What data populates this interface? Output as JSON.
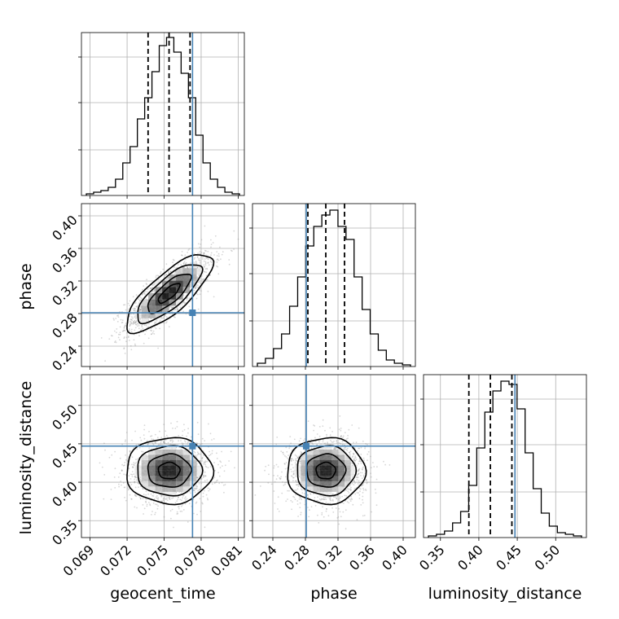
{
  "chart_data": {
    "type": "corner",
    "colors": {
      "truth": "#4682b4",
      "hist": "#000000",
      "grid": "#b0b0b0",
      "scatter": "#8c8c8c"
    },
    "parameters": [
      {
        "name": "geocent_time",
        "label": "geocent_time",
        "range": [
          0.0683,
          0.0815
        ],
        "ticks": [
          0.069,
          0.072,
          0.075,
          0.078,
          0.081
        ],
        "tick_labels": [
          "0.069",
          "0.072",
          "0.075",
          "0.078",
          "0.081"
        ],
        "truth": 0.0773,
        "quantiles": [
          0.0737,
          0.0754,
          0.0771
        ],
        "hist_peak": 0.97,
        "hist_bins": [
          0.01,
          0.02,
          0.03,
          0.05,
          0.1,
          0.2,
          0.3,
          0.47,
          0.6,
          0.76,
          0.92,
          0.97,
          0.88,
          0.75,
          0.6,
          0.37,
          0.2,
          0.1,
          0.05,
          0.02,
          0.01
        ]
      },
      {
        "name": "phase",
        "label": "phase",
        "range": [
          0.215,
          0.415
        ],
        "ticks": [
          0.24,
          0.28,
          0.32,
          0.36,
          0.4
        ],
        "tick_labels": [
          "0.24",
          "0.28",
          "0.32",
          "0.36",
          "0.40"
        ],
        "truth": 0.281,
        "quantiles": [
          0.283,
          0.305,
          0.328
        ],
        "hist_peak": 0.97,
        "hist_bins": [
          0.02,
          0.05,
          0.11,
          0.2,
          0.37,
          0.55,
          0.74,
          0.86,
          0.93,
          0.96,
          0.86,
          0.78,
          0.55,
          0.35,
          0.2,
          0.1,
          0.04,
          0.02,
          0.01
        ]
      },
      {
        "name": "luminosity_distance",
        "label": "luminosity_distance",
        "range": [
          0.328,
          0.54
        ],
        "ticks": [
          0.35,
          0.4,
          0.45,
          0.5
        ],
        "tick_labels": [
          "0.35",
          "0.40",
          "0.45",
          "0.50"
        ],
        "truth": 0.447,
        "quantiles": [
          0.387,
          0.415,
          0.443
        ],
        "hist_peak": 0.97,
        "hist_bins": [
          0.01,
          0.02,
          0.04,
          0.09,
          0.16,
          0.32,
          0.55,
          0.77,
          0.9,
          0.96,
          0.94,
          0.79,
          0.52,
          0.3,
          0.15,
          0.07,
          0.03,
          0.02,
          0.01
        ]
      }
    ],
    "pairs": [
      {
        "x": 0,
        "y": 1,
        "mean": [
          0.0754,
          0.305
        ],
        "sd": [
          0.00175,
          0.024
        ],
        "corr": 0.78
      },
      {
        "x": 0,
        "y": 2,
        "mean": [
          0.0754,
          0.415
        ],
        "sd": [
          0.00175,
          0.0215
        ],
        "corr": 0.0
      },
      {
        "x": 1,
        "y": 2,
        "mean": [
          0.305,
          0.415
        ],
        "sd": [
          0.024,
          0.0215
        ],
        "corr": 0.0
      }
    ]
  }
}
